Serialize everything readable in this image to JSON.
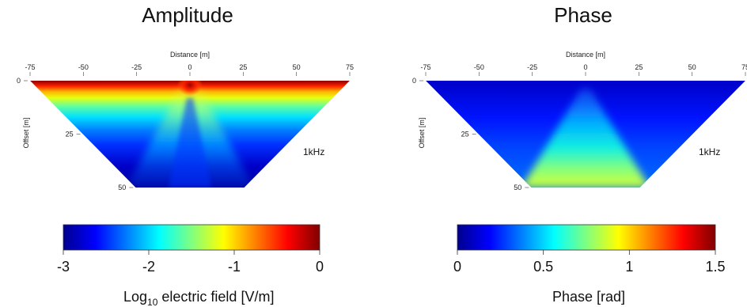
{
  "chart_data": [
    {
      "type": "heatmap",
      "title": "Amplitude",
      "xlabel": "Distance [m]",
      "ylabel": "Offset [m]",
      "x_ticks": [
        -75,
        -50,
        -25,
        0,
        25,
        50,
        75
      ],
      "y_ticks": [
        0,
        25,
        50
      ],
      "xlim": [
        -75,
        75
      ],
      "ylim": [
        0,
        50
      ],
      "annotation": "1kHz",
      "colorbar": {
        "colormap": "jet",
        "range": [
          -3,
          0
        ],
        "ticks": [
          -3,
          -2,
          -1,
          0
        ],
        "label_main": "Log",
        "label_sub": "10",
        "label_rest": " electric field [V/m]"
      }
    },
    {
      "type": "heatmap",
      "title": "Phase",
      "xlabel": "Distance [m]",
      "ylabel": "Offset [m]",
      "x_ticks": [
        -75,
        -50,
        -25,
        0,
        25,
        50,
        75
      ],
      "y_ticks": [
        0,
        25,
        50
      ],
      "xlim": [
        -75,
        75
      ],
      "ylim": [
        0,
        50
      ],
      "annotation": "1kHz",
      "colorbar": {
        "colormap": "jet",
        "range": [
          0,
          1.5
        ],
        "ticks": [
          0,
          0.5,
          1,
          1.5
        ],
        "label": "Phase [rad]"
      }
    }
  ]
}
